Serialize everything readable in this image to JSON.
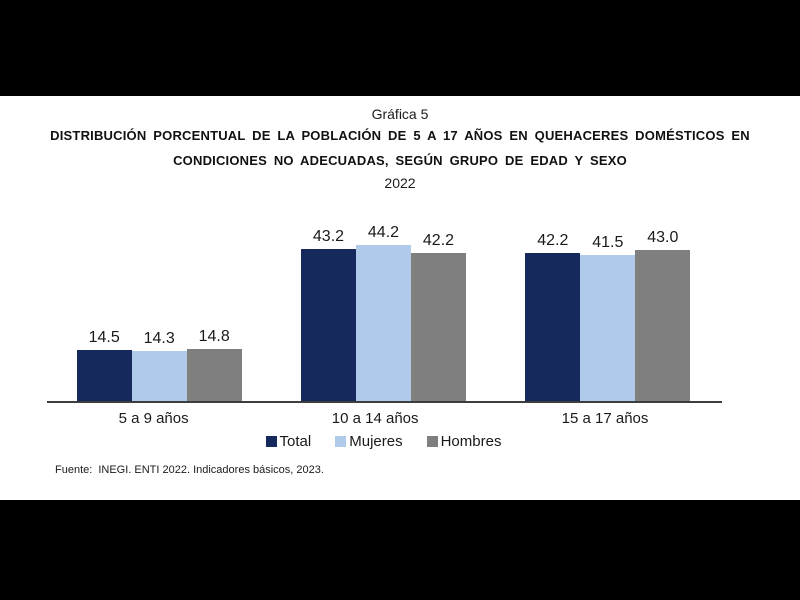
{
  "chart": {
    "label": "Gráfica 5",
    "title_line1": "DISTRIBUCIÓN PORCENTUAL DE LA POBLACIÓN DE 5 A 17 AÑOS EN QUEHACERES DOMÉSTICOS EN",
    "title_line2": "CONDICIONES NO ADECUADAS,  SEGÚN GRUPO DE EDAD Y SEXO",
    "year": "2022",
    "source_prefix": "Fuente:",
    "source_text": "INEGI. ENTI 2022. Indicadores básicos, 2023."
  },
  "chart_data": {
    "type": "bar",
    "title": "Distribución porcentual de la población de 5 a 17 años en quehaceres domésticos en condiciones no adecuadas, según grupo de edad y sexo, 2022",
    "categories": [
      "5 a 9 años",
      "10 a 14 años",
      "15 a 17 años"
    ],
    "series": [
      {
        "name": "Total",
        "color": "#16295C",
        "values": [
          14.5,
          43.2,
          42.2
        ]
      },
      {
        "name": "Mujeres",
        "color": "#AFCBE9",
        "values": [
          14.3,
          44.2,
          41.5
        ]
      },
      {
        "name": "Hombres",
        "color": "#7F7F7F",
        "values": [
          14.8,
          42.2,
          43.0
        ]
      }
    ],
    "xlabel": "",
    "ylabel": "",
    "ylim": [
      0,
      50
    ],
    "grid": false,
    "value_labels": true,
    "legend_position": "bottom",
    "axis_color": "#3d3d3d"
  }
}
